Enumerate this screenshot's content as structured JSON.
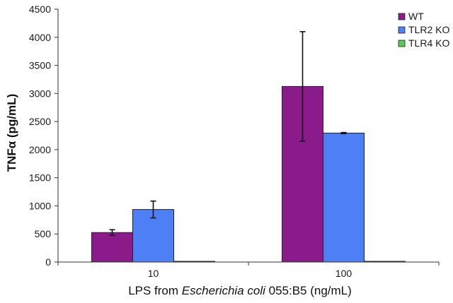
{
  "chart_data": {
    "type": "bar",
    "categories": [
      "10",
      "100"
    ],
    "series": [
      {
        "name": "WT",
        "color": "#8b1a8b",
        "values": [
          525,
          3125
        ],
        "error": [
          50,
          975
        ]
      },
      {
        "name": "TLR2 KO",
        "color": "#4f7ff5",
        "values": [
          935,
          2295
        ],
        "error": [
          150,
          10
        ]
      },
      {
        "name": "TLR4 KO",
        "color": "#55cc55",
        "values": [
          8,
          8
        ],
        "error": [
          0,
          0
        ]
      }
    ],
    "xlabel_prefix": "LPS from ",
    "xlabel_italic": "Escherichia coli",
    "xlabel_suffix": " 055:B5 (ng/mL)",
    "ylabel": "TNFα  (pg/mL)",
    "ylim": [
      0,
      4500
    ],
    "yticks": [
      0,
      500,
      1000,
      1500,
      2000,
      2500,
      3000,
      3500,
      4000,
      4500
    ],
    "grid": false,
    "legend_position": "top-right"
  }
}
